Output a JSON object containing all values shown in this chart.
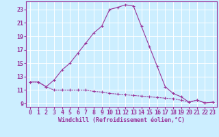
{
  "background_color": "#cceeff",
  "grid_color": "#ffffff",
  "line_color": "#993399",
  "xlabel": "Windchill (Refroidissement éolien,°C)",
  "xlim": [
    -0.5,
    23.5
  ],
  "ylim": [
    8.5,
    24.2
  ],
  "yticks": [
    9,
    11,
    13,
    15,
    17,
    19,
    21,
    23
  ],
  "xticks": [
    0,
    1,
    2,
    3,
    4,
    5,
    6,
    7,
    8,
    9,
    10,
    11,
    12,
    13,
    14,
    15,
    16,
    17,
    18,
    19,
    20,
    21,
    22,
    23
  ],
  "line1_x": [
    0,
    1,
    2,
    3,
    4,
    5,
    6,
    7,
    8,
    9,
    10,
    11,
    12,
    13,
    14,
    15,
    16,
    17,
    18,
    19,
    20,
    21,
    22,
    23
  ],
  "line1_y": [
    12.2,
    12.2,
    11.5,
    11.0,
    11.0,
    11.0,
    11.0,
    11.0,
    10.8,
    10.7,
    10.5,
    10.4,
    10.3,
    10.2,
    10.1,
    10.0,
    9.9,
    9.8,
    9.7,
    9.5,
    9.2,
    9.5,
    9.1,
    9.2
  ],
  "line2_x": [
    0,
    1,
    2,
    3,
    4,
    5,
    6,
    7,
    8,
    9,
    10,
    11,
    12,
    13,
    14,
    15,
    16,
    17,
    18,
    19,
    20,
    21,
    22,
    23
  ],
  "line2_y": [
    12.2,
    12.2,
    11.5,
    12.5,
    14.0,
    15.0,
    16.5,
    18.0,
    19.5,
    20.5,
    23.0,
    23.3,
    23.7,
    23.5,
    20.5,
    17.5,
    14.5,
    11.5,
    10.5,
    10.0,
    9.2,
    9.5,
    9.1,
    9.2
  ],
  "xlabel_fontsize": 6,
  "tick_fontsize": 6,
  "line_width": 0.8,
  "marker_size": 3.0
}
